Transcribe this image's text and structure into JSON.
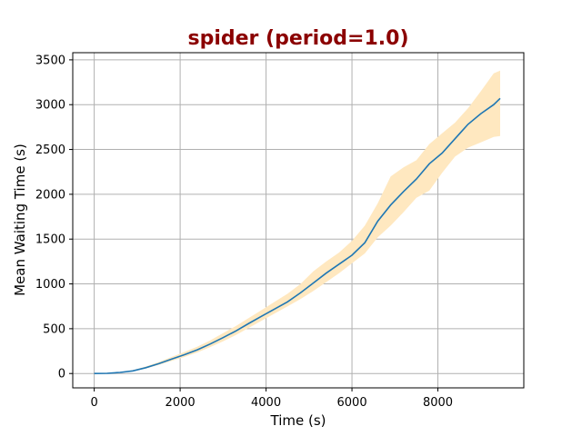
{
  "chart_data": {
    "type": "line",
    "title": "spider (period=1.0)",
    "xlabel": "Time (s)",
    "ylabel": "Mean Waiting Time (s)",
    "xlim": [
      -500,
      10000
    ],
    "ylim": [
      -160,
      3580
    ],
    "xticks": [
      0,
      2000,
      4000,
      6000,
      8000
    ],
    "yticks": [
      0,
      500,
      1000,
      1500,
      2000,
      2500,
      3000,
      3500
    ],
    "grid": true,
    "colors": {
      "title": "#8b0000",
      "line": "#1f77b4",
      "band": "#ffe8c0",
      "grid": "#b0b0b0",
      "axis": "#000000"
    },
    "series": [
      {
        "x": [
          0,
          300,
          600,
          900,
          1200,
          1500,
          1800,
          2100,
          2400,
          2700,
          3000,
          3300,
          3600,
          3900,
          4200,
          4500,
          4800,
          5100,
          5400,
          5700,
          6000,
          6300,
          6600,
          6900,
          7200,
          7500,
          7800,
          8100,
          8400,
          8700,
          9000,
          9300,
          9450
        ],
        "y": [
          0,
          2,
          12,
          30,
          65,
          110,
          160,
          210,
          265,
          330,
          400,
          475,
          560,
          640,
          720,
          800,
          900,
          1010,
          1120,
          1220,
          1320,
          1460,
          1700,
          1880,
          2030,
          2170,
          2340,
          2460,
          2620,
          2780,
          2900,
          3000,
          3070
        ],
        "lower": [
          0,
          2,
          10,
          25,
          55,
          95,
          140,
          185,
          235,
          295,
          360,
          430,
          510,
          590,
          670,
          750,
          830,
          920,
          1020,
          1120,
          1230,
          1340,
          1520,
          1650,
          1800,
          1960,
          2040,
          2240,
          2420,
          2520,
          2580,
          2640,
          2650
        ],
        "upper": [
          0,
          3,
          15,
          38,
          78,
          128,
          185,
          240,
          300,
          370,
          450,
          530,
          620,
          710,
          800,
          890,
          1000,
          1140,
          1250,
          1350,
          1480,
          1650,
          1900,
          2200,
          2300,
          2380,
          2560,
          2680,
          2800,
          2960,
          3150,
          3350,
          3380
        ]
      }
    ]
  }
}
